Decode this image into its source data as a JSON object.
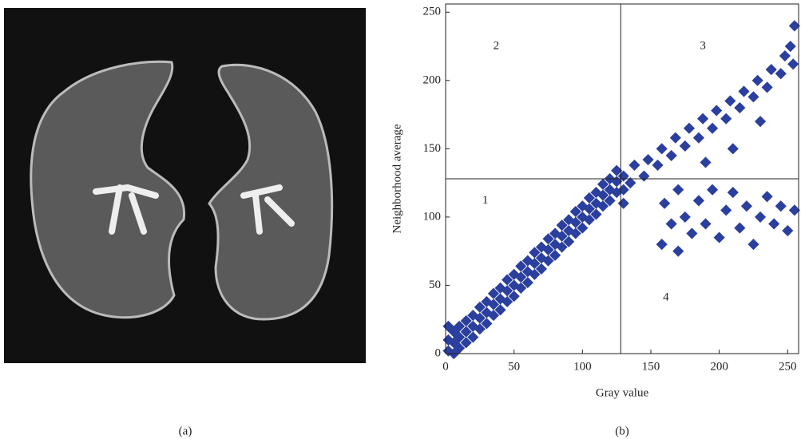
{
  "panels": [
    "(a)",
    "(b)"
  ],
  "chart_data": {
    "type": "scatter",
    "xlabel": "Gray value",
    "ylabel": "Neighborhood average",
    "xlim": [
      0,
      258
    ],
    "ylim": [
      0,
      256
    ],
    "xticks": [
      0,
      50,
      100,
      150,
      200,
      250
    ],
    "yticks": [
      0,
      50,
      100,
      150,
      200,
      250
    ],
    "color": "#2b3f9e",
    "vlines": [
      128
    ],
    "hlines": [
      128
    ],
    "annotations": [
      {
        "text": "1",
        "x": 29,
        "y": 112
      },
      {
        "text": "2",
        "x": 37,
        "y": 225
      },
      {
        "text": "3",
        "x": 188,
        "y": 225
      },
      {
        "text": "4",
        "x": 161,
        "y": 41
      }
    ],
    "x": [
      2,
      2,
      2,
      6,
      6,
      6,
      10,
      10,
      10,
      15,
      15,
      15,
      20,
      20,
      20,
      25,
      25,
      25,
      30,
      30,
      30,
      35,
      35,
      35,
      40,
      40,
      40,
      45,
      45,
      45,
      50,
      50,
      50,
      55,
      55,
      55,
      60,
      60,
      60,
      65,
      65,
      65,
      70,
      70,
      70,
      75,
      75,
      75,
      80,
      80,
      80,
      85,
      85,
      85,
      90,
      90,
      90,
      95,
      95,
      95,
      100,
      100,
      100,
      105,
      105,
      105,
      110,
      110,
      110,
      115,
      115,
      115,
      120,
      120,
      120,
      125,
      125,
      125,
      130,
      130,
      130,
      135,
      138,
      145,
      148,
      155,
      158,
      165,
      168,
      175,
      178,
      185,
      188,
      195,
      198,
      205,
      208,
      215,
      218,
      225,
      228,
      235,
      238,
      245,
      248,
      252,
      255,
      254,
      230,
      210,
      190,
      160,
      165,
      170,
      175,
      180,
      185,
      190,
      195,
      200,
      205,
      210,
      215,
      220,
      225,
      230,
      235,
      240,
      245,
      250,
      255,
      158,
      170
    ],
    "y": [
      2,
      10,
      20,
      0,
      8,
      16,
      4,
      12,
      20,
      8,
      16,
      24,
      12,
      20,
      28,
      18,
      26,
      34,
      22,
      30,
      38,
      28,
      36,
      44,
      32,
      40,
      48,
      38,
      46,
      54,
      42,
      50,
      58,
      48,
      56,
      64,
      52,
      60,
      68,
      58,
      66,
      74,
      62,
      70,
      78,
      68,
      76,
      84,
      72,
      80,
      88,
      78,
      86,
      94,
      82,
      90,
      98,
      88,
      96,
      104,
      92,
      100,
      108,
      98,
      106,
      114,
      102,
      110,
      118,
      108,
      116,
      124,
      112,
      120,
      128,
      118,
      126,
      134,
      110,
      120,
      130,
      125,
      138,
      130,
      142,
      138,
      150,
      145,
      158,
      152,
      165,
      158,
      172,
      165,
      178,
      172,
      185,
      180,
      192,
      188,
      200,
      195,
      208,
      205,
      218,
      225,
      240,
      212,
      170,
      150,
      140,
      110,
      95,
      120,
      100,
      88,
      112,
      95,
      120,
      85,
      105,
      118,
      92,
      108,
      80,
      100,
      115,
      95,
      108,
      90,
      105,
      80,
      75
    ]
  }
}
